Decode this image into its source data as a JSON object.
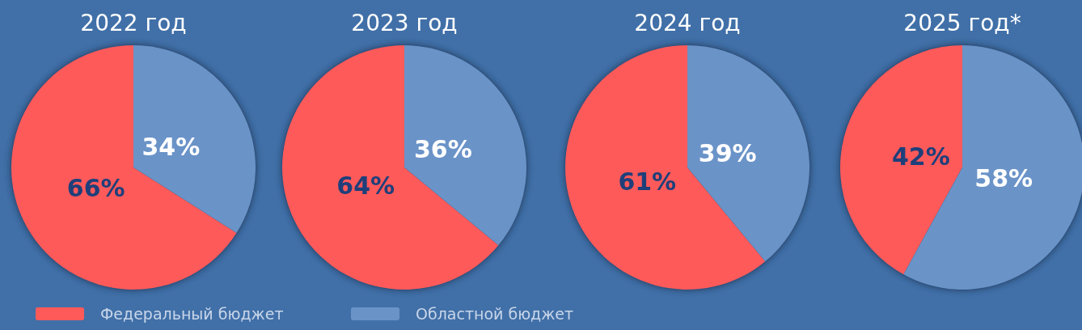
{
  "chart_data": [
    {
      "type": "pie",
      "title": "2022 год",
      "categories": [
        "Федеральный бюджет",
        "Областной бюджет"
      ],
      "values": [
        66,
        34
      ],
      "colors": [
        "#ff5a5a",
        "#6a93c8"
      ],
      "value_labels": [
        "66%",
        "34%"
      ],
      "legend": "bottom"
    },
    {
      "type": "pie",
      "title": "2023 год",
      "categories": [
        null,
        null
      ],
      "values": [
        64,
        36
      ],
      "colors": [
        "#ff5a5a",
        "#6a93c8"
      ],
      "value_labels": [
        "64%",
        "36%"
      ]
    },
    {
      "type": "pie",
      "title": "2024 год",
      "categories": [
        null,
        null
      ],
      "values": [
        61,
        39
      ],
      "colors": [
        "#ff5a5a",
        "#6a93c8"
      ],
      "value_labels": [
        "61%",
        "39%"
      ]
    },
    {
      "type": "pie",
      "title": "2025 год*",
      "categories": [
        null,
        null
      ],
      "values": [
        42,
        58
      ],
      "colors": [
        "#ff5a5a",
        "#6a93c8"
      ],
      "value_labels": [
        "42%",
        "58%"
      ]
    }
  ]
}
